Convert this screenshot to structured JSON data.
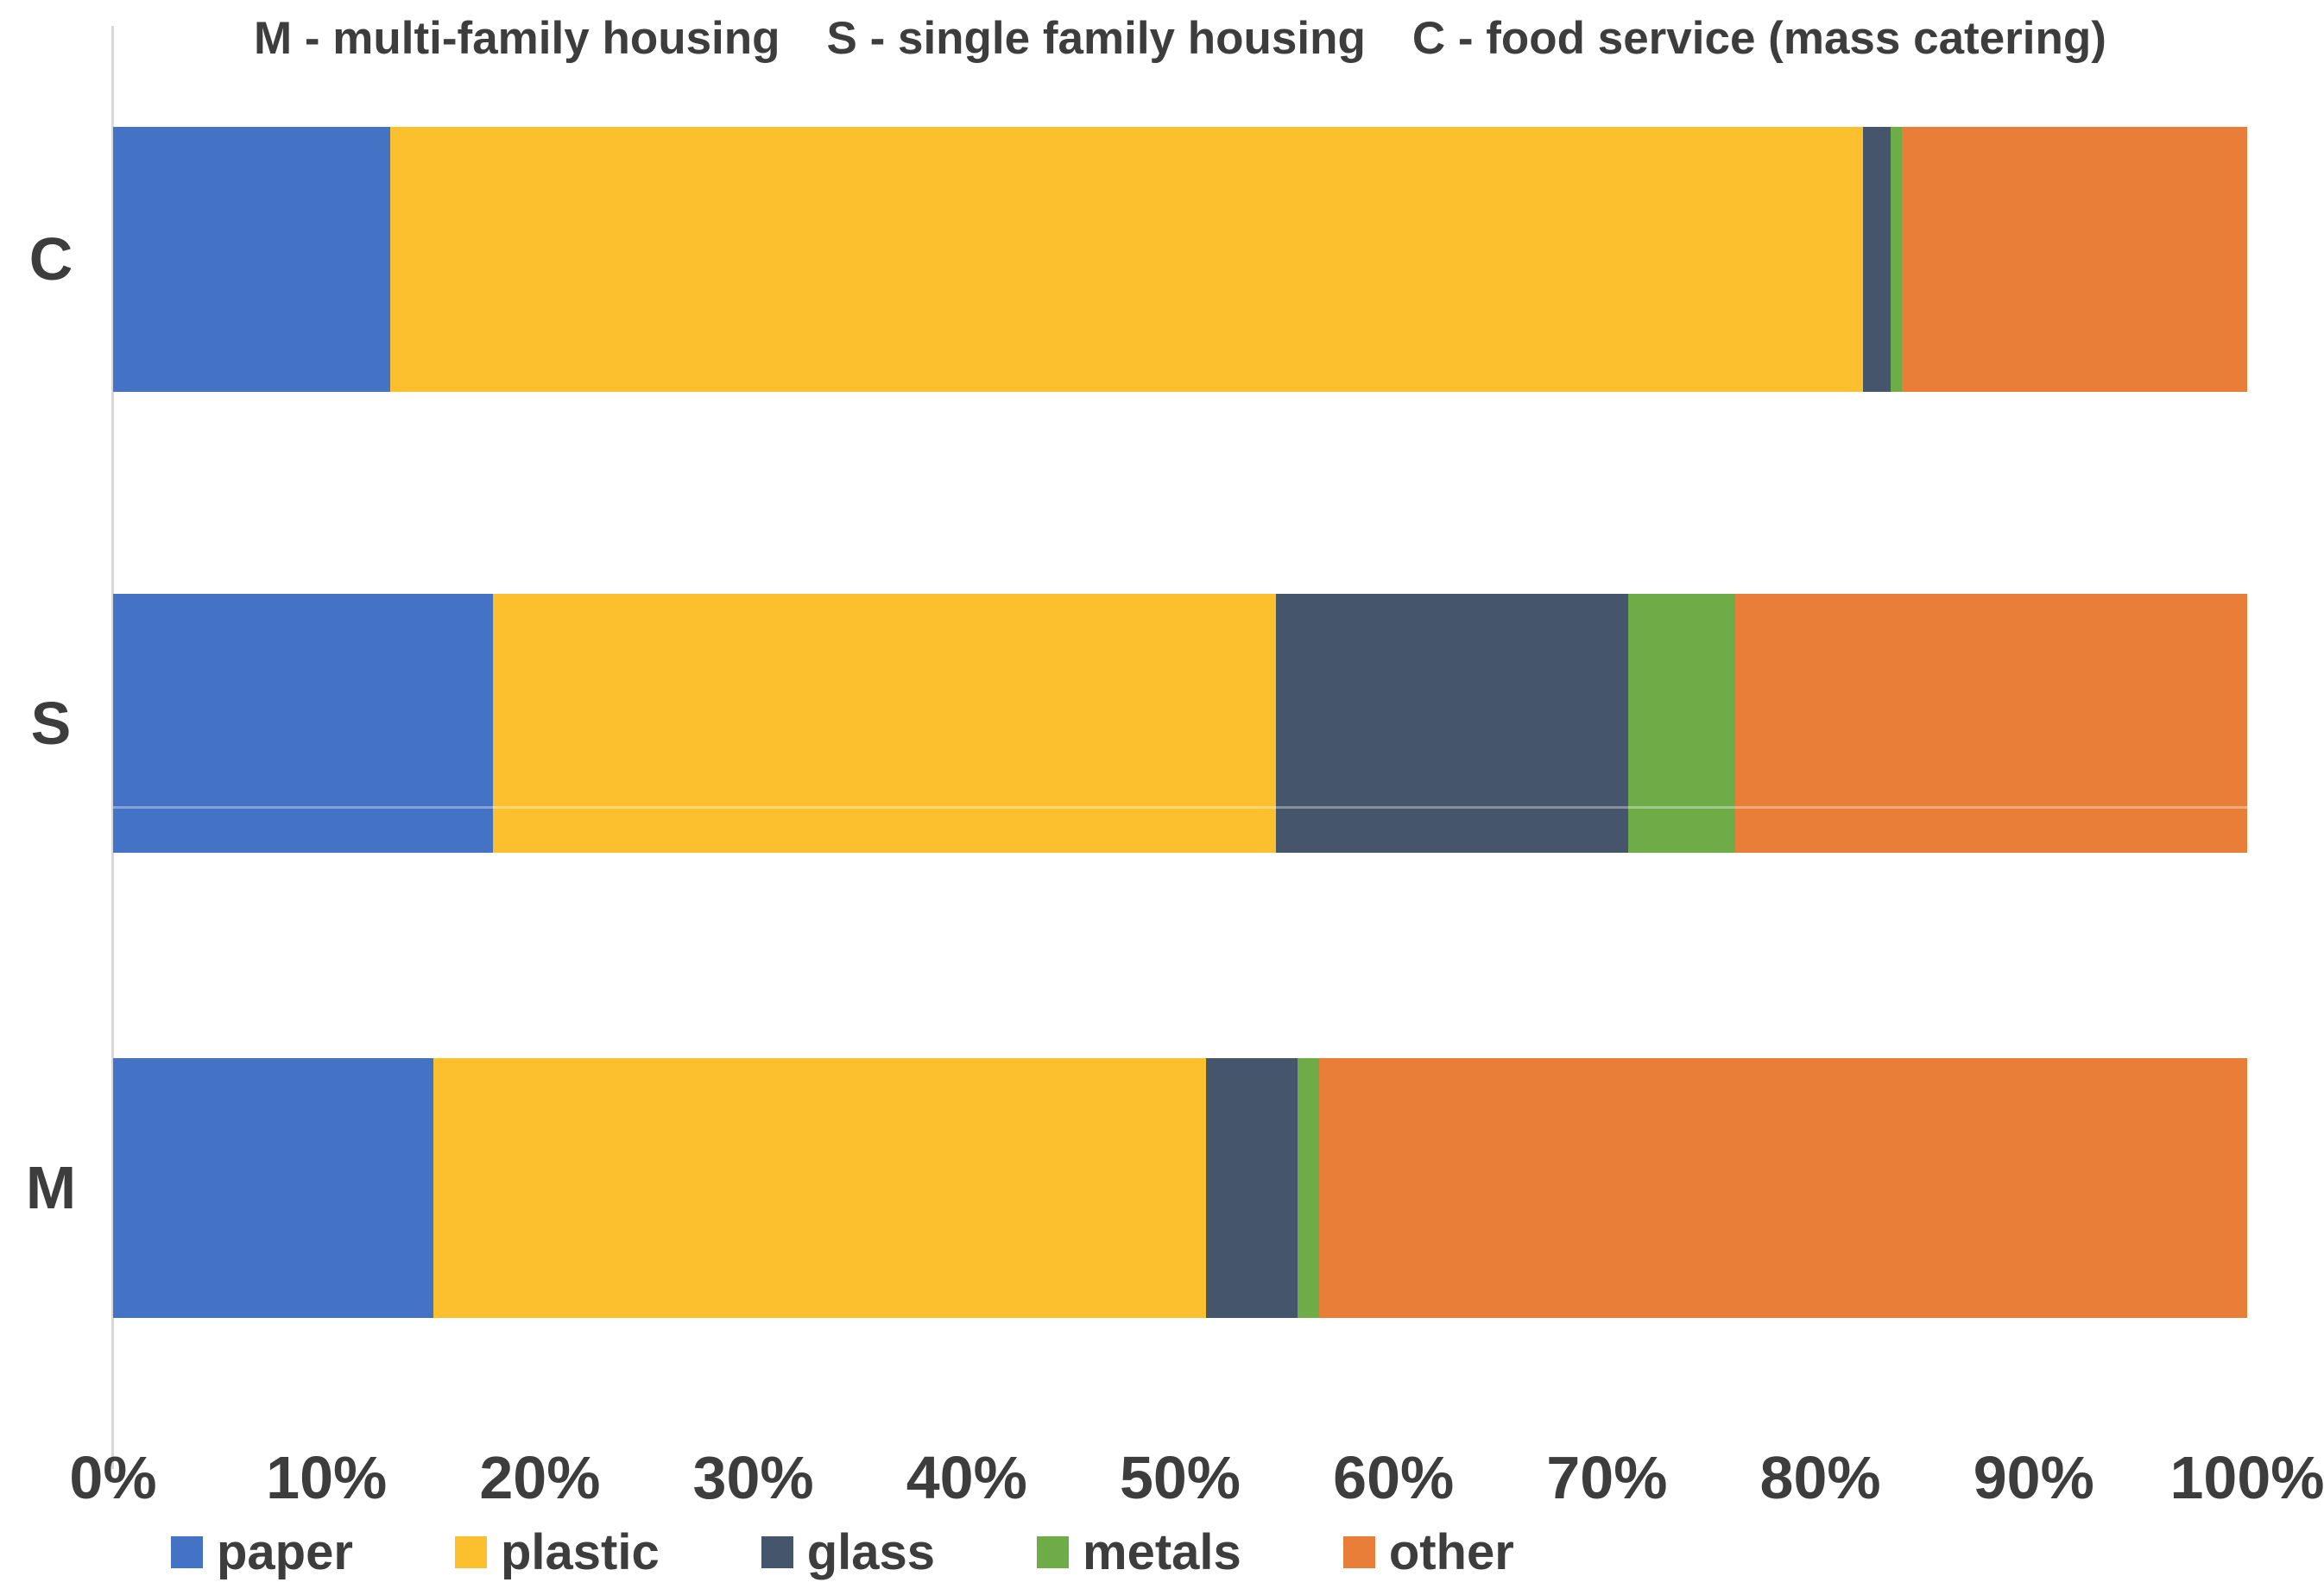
{
  "title": {
    "parts": [
      "M - multi-family housing",
      "S - single family housing",
      "C - food service (mass catering)"
    ]
  },
  "colors": {
    "paper": "#4472C4",
    "plastic": "#FCC02E",
    "glass": "#44556C",
    "metals": "#6EAC48",
    "other": "#E97E38",
    "text": "#3D3D3D",
    "axis_line": "#D9D9D9",
    "background": "#FFFFFF"
  },
  "chart_data": {
    "type": "bar",
    "orientation": "horizontal",
    "stacked": true,
    "stacked_to_100_percent": true,
    "unit": "%",
    "categories": [
      "C",
      "S",
      "M"
    ],
    "series": [
      {
        "name": "paper",
        "color": "#4472C4",
        "values": [
          13.0,
          17.8,
          15.0
        ]
      },
      {
        "name": "plastic",
        "color": "#FCC02E",
        "values": [
          69.0,
          36.7,
          36.2
        ]
      },
      {
        "name": "glass",
        "color": "#44556C",
        "values": [
          1.3,
          16.5,
          4.3
        ]
      },
      {
        "name": "metals",
        "color": "#6EAC48",
        "values": [
          0.5,
          5.0,
          1.0
        ]
      },
      {
        "name": "other",
        "color": "#E97E38",
        "values": [
          16.2,
          24.0,
          43.5
        ]
      }
    ],
    "x_axis": {
      "min": 0,
      "max": 100,
      "ticks": [
        "0%",
        "10%",
        "20%",
        "30%",
        "40%",
        "50%",
        "60%",
        "70%",
        "80%",
        "90%",
        "100%"
      ],
      "gridlines": false
    },
    "legend": {
      "position": "bottom",
      "items": [
        "paper",
        "plastic",
        "glass",
        "metals",
        "other"
      ]
    }
  }
}
